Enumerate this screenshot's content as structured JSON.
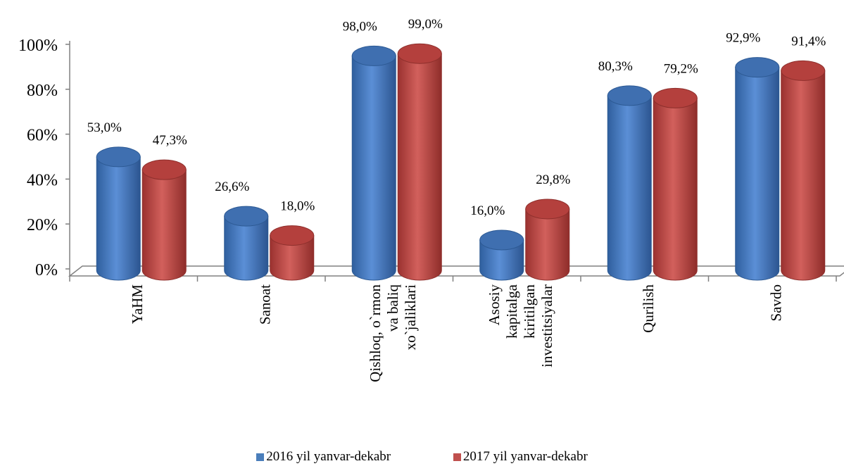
{
  "chart_data": {
    "type": "bar",
    "title": "",
    "xlabel": "",
    "ylabel": "",
    "ylim": [
      0,
      100
    ],
    "yticks": [
      "0%",
      "20%",
      "40%",
      "60%",
      "80%",
      "100%"
    ],
    "categories": [
      [
        "YaHM"
      ],
      [
        "Sanoat"
      ],
      [
        "Qishloq, o`rmon",
        "va baliq",
        "xo`jaliklari"
      ],
      [
        "Asosiy",
        "kapitalga",
        "kiritilgan",
        "investitsiyalar"
      ],
      [
        "Qurilish"
      ],
      [
        "Savdo"
      ]
    ],
    "series": [
      {
        "name": "2016 yil yanvar-dekabr",
        "color": "#4a7ebb",
        "values": [
          53.0,
          26.6,
          98.0,
          16.0,
          80.3,
          92.9
        ],
        "labels": [
          "53,0%",
          "26,6%",
          "98,0%",
          "16,0%",
          "80,3%",
          "92,9%"
        ]
      },
      {
        "name": "2017 yil yanvar-dekabr",
        "color": "#c0504d",
        "values": [
          47.3,
          18.0,
          99.0,
          29.8,
          79.2,
          91.4
        ],
        "labels": [
          "47,3%",
          "18,0%",
          "99,0%",
          "29,8%",
          "79,2%",
          "91,4%"
        ]
      }
    ],
    "legend_position": "bottom"
  }
}
